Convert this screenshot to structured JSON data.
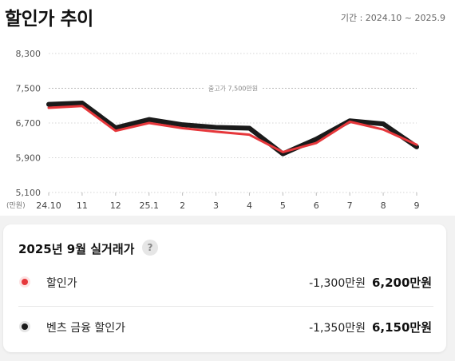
{
  "header": {
    "title": "할인가 추이",
    "period": "기간 : 2024.10 ~ 2025.9"
  },
  "colors": {
    "discount": "#e6373b",
    "benz_finance": "#1a1a1a",
    "grid": "#d4d4d4",
    "reference": "#b8b8b8"
  },
  "chart_data": {
    "type": "line",
    "categories": [
      "24.10",
      "11",
      "12",
      "25.1",
      "2",
      "3",
      "4",
      "5",
      "6",
      "7",
      "8",
      "9"
    ],
    "y_unit_label": "(만원)",
    "y_ticks": [
      "8,300",
      "7,500",
      "6,700",
      "5,900",
      "5,100"
    ],
    "y_tick_values": [
      8300,
      7500,
      6700,
      5900,
      5100
    ],
    "ylim": [
      5100,
      8300
    ],
    "grid": true,
    "reference_line": {
      "value": 7500,
      "label": "출고가 7,500만원"
    },
    "series": [
      {
        "key": "benz",
        "values": [
          7130,
          7160,
          6590,
          6780,
          6660,
          6600,
          6580,
          5990,
          6330,
          6750,
          6680,
          6150
        ],
        "color": "#1a1a1a"
      },
      {
        "key": "discount",
        "values": [
          7050,
          7090,
          6520,
          6700,
          6580,
          6500,
          6430,
          6030,
          6240,
          6730,
          6550,
          6200
        ],
        "color": "#e6373b"
      }
    ]
  },
  "card": {
    "title": "2025년 9월 실거래가",
    "help_icon": "?",
    "rows": [
      {
        "label": "할인가",
        "diff": "-1,300만원",
        "price": "6,200만원"
      },
      {
        "label": "벤츠 금융 할인가",
        "diff": "-1,350만원",
        "price": "6,150만원"
      }
    ]
  }
}
